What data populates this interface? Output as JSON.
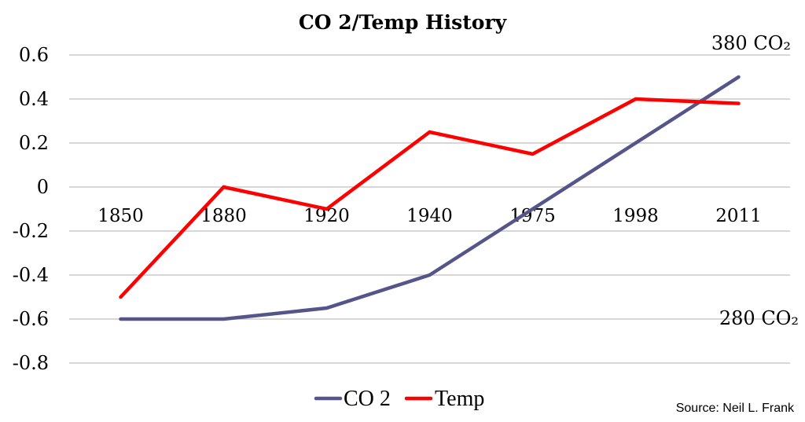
{
  "chart_data": {
    "type": "line",
    "title": "CO 2/Temp History",
    "xlabel": "",
    "ylabel": "",
    "categories": [
      "1850",
      "1880",
      "1920",
      "1940",
      "1975",
      "1998",
      "2011"
    ],
    "ylim": [
      -0.8,
      0.6
    ],
    "yticks": [
      0.6,
      0.4,
      0.2,
      0,
      -0.2,
      -0.4,
      -0.6,
      -0.8
    ],
    "ytick_labels": [
      "0.6",
      "0.4",
      "0.2",
      "0",
      "-0.2",
      "-0.4",
      "-0.6",
      "-0.8"
    ],
    "grid": true,
    "x_labels_axis_value": -0.1,
    "series": [
      {
        "name": "CO 2",
        "color": "#55558a",
        "values": [
          -0.6,
          -0.6,
          -0.55,
          -0.4,
          -0.1,
          0.2,
          0.5
        ]
      },
      {
        "name": "Temp",
        "color": "#ff0000",
        "values": [
          -0.5,
          0.0,
          -0.1,
          0.25,
          0.15,
          0.4,
          0.38
        ]
      }
    ],
    "legend": {
      "placement": "bottom-center",
      "entries": [
        "CO 2",
        "Temp"
      ]
    },
    "annotations": [
      {
        "text": "380 CO₂",
        "position": "top-right"
      },
      {
        "text": "280 CO₂",
        "position": "right-at--0.6"
      }
    ],
    "source": "Source: Neil L. Frank"
  }
}
